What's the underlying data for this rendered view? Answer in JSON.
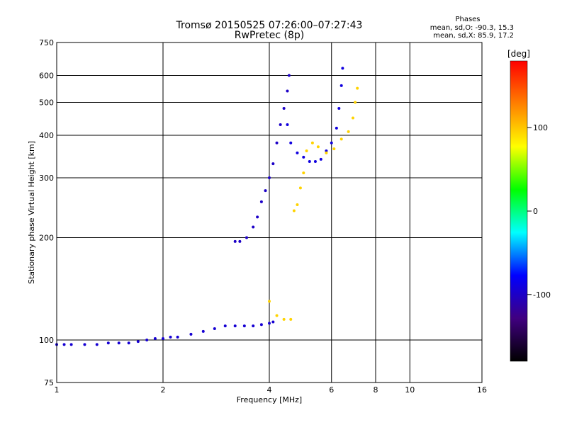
{
  "chart_data": {
    "type": "scatter",
    "title": "Tromsø 20150525 07:26:00–07:27:43",
    "subtitle": "RwPretec (8p)",
    "xlabel": "Frequency [MHz]",
    "ylabel": "Stationary phase Virtual Height [km]",
    "x_scale": "log",
    "y_scale": "log",
    "xlim": [
      1,
      16
    ],
    "ylim": [
      75,
      750
    ],
    "x_ticks": [
      1,
      2,
      4,
      6,
      8,
      10,
      16
    ],
    "y_ticks": [
      75,
      100,
      200,
      300,
      400,
      500,
      600,
      750
    ],
    "grid": true,
    "phase_stats": {
      "heading": "Phases",
      "line1": "mean, sd,O:  -90.3, 15.3",
      "line2": "mean, sd,X:  85.9, 17.2"
    },
    "colorbar": {
      "label": "[deg]",
      "range": [
        -180,
        180
      ],
      "ticks": [
        100,
        0,
        -100
      ],
      "colors": [
        "#ff0000",
        "#ff8000",
        "#ffff00",
        "#00ff00",
        "#00ffff",
        "#0000ff",
        "#400080",
        "#000000"
      ]
    },
    "series": [
      {
        "role": "O-mode F-trace lower branch",
        "phase": -95,
        "points": [
          [
            1.0,
            97
          ],
          [
            1.05,
            97
          ],
          [
            1.1,
            97
          ],
          [
            1.2,
            97
          ],
          [
            1.3,
            97
          ],
          [
            1.4,
            98
          ],
          [
            1.5,
            98
          ],
          [
            1.6,
            98
          ],
          [
            1.7,
            99
          ],
          [
            1.8,
            100
          ],
          [
            1.9,
            101
          ],
          [
            2.0,
            101
          ],
          [
            2.1,
            102
          ],
          [
            2.2,
            102
          ],
          [
            2.4,
            104
          ],
          [
            2.6,
            106
          ],
          [
            2.8,
            108
          ],
          [
            3.0,
            110
          ],
          [
            3.2,
            110
          ],
          [
            3.4,
            110
          ],
          [
            3.6,
            110
          ],
          [
            3.8,
            111
          ],
          [
            4.0,
            112
          ],
          [
            4.1,
            113
          ]
        ]
      },
      {
        "role": "O-mode F-trace upper branch",
        "phase": -100,
        "points": [
          [
            3.2,
            195
          ],
          [
            3.3,
            195
          ],
          [
            3.45,
            200
          ],
          [
            3.6,
            215
          ],
          [
            3.7,
            230
          ],
          [
            3.8,
            255
          ],
          [
            3.9,
            275
          ],
          [
            4.0,
            300
          ],
          [
            4.1,
            330
          ],
          [
            4.2,
            380
          ],
          [
            4.3,
            430
          ],
          [
            4.4,
            480
          ],
          [
            4.5,
            540
          ],
          [
            4.55,
            600
          ]
        ]
      },
      {
        "role": "O-mode F2 trace",
        "phase": -90,
        "points": [
          [
            4.5,
            430
          ],
          [
            4.6,
            380
          ],
          [
            4.8,
            355
          ],
          [
            5.0,
            345
          ],
          [
            5.2,
            335
          ],
          [
            5.4,
            335
          ],
          [
            5.6,
            340
          ],
          [
            5.8,
            360
          ],
          [
            6.0,
            380
          ],
          [
            6.2,
            420
          ],
          [
            6.3,
            480
          ],
          [
            6.4,
            560
          ],
          [
            6.45,
            630
          ]
        ]
      },
      {
        "role": "X-mode trace",
        "phase": 95,
        "points": [
          [
            4.0,
            130
          ],
          [
            4.2,
            118
          ],
          [
            4.4,
            115
          ],
          [
            4.6,
            115
          ],
          [
            4.7,
            240
          ],
          [
            4.8,
            250
          ],
          [
            4.9,
            280
          ],
          [
            5.0,
            310
          ],
          [
            5.1,
            360
          ],
          [
            5.3,
            380
          ],
          [
            5.5,
            370
          ],
          [
            5.8,
            355
          ],
          [
            6.1,
            365
          ],
          [
            6.4,
            390
          ],
          [
            6.7,
            410
          ],
          [
            6.9,
            450
          ],
          [
            7.0,
            500
          ],
          [
            7.1,
            550
          ]
        ]
      }
    ]
  }
}
